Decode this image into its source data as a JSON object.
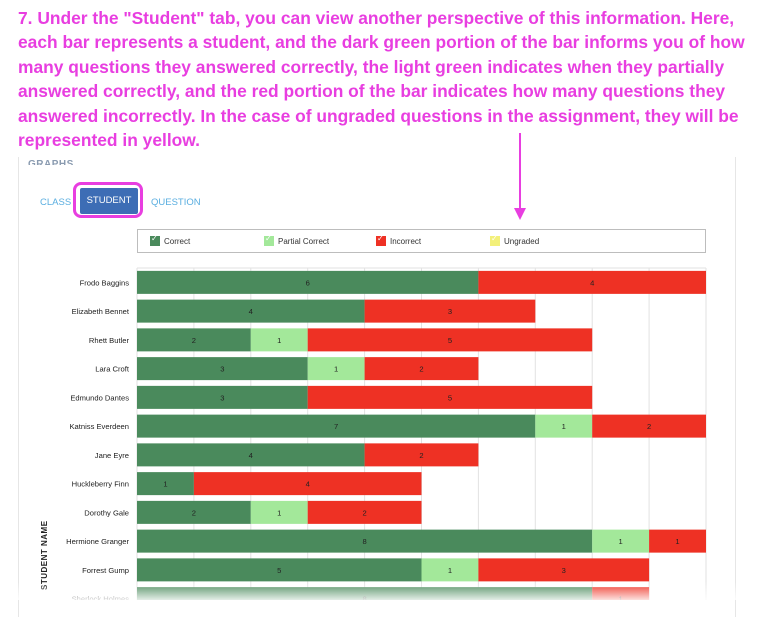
{
  "instruction": "7. Under the \"Student\" tab, you can view another perspective of this information. Here, each bar represents a student, and the dark green portion of the bar informs you of how many questions they answered correctly, the light green indicates when they partially answered correctly, and the red portion of the bar indicates how many questions they answered incorrectly. In the case of ungraded questions in the assignment, they will be represented in yellow.",
  "panel_title": "GRAPHS",
  "tabs": {
    "class": "CLASS",
    "student": "STUDENT",
    "question": "QUESTION"
  },
  "colors": {
    "correct": "#4a8a5c",
    "partial": "#a3e89a",
    "incorrect": "#ee3124",
    "ungraded": "#f3f07a",
    "highlight": "#e83ee0"
  },
  "chart_data": {
    "type": "bar",
    "orientation": "horizontal",
    "stacked": true,
    "title": "",
    "xlabel": "",
    "ylabel": "STUDENT NAME",
    "xlim": [
      0,
      10
    ],
    "grid": true,
    "legend_position": "top",
    "categories": [
      "Frodo Baggins",
      "Elizabeth Bennet",
      "Rhett Butler",
      "Lara Croft",
      "Edmundo Dantes",
      "Katniss Everdeen",
      "Jane Eyre",
      "Huckleberry Finn",
      "Dorothy Gale",
      "Hermione Granger",
      "Forrest Gump",
      "Sherlock Holmes"
    ],
    "series": [
      {
        "name": "Correct",
        "values": [
          6,
          4,
          2,
          3,
          3,
          7,
          4,
          1,
          2,
          8,
          5,
          8
        ]
      },
      {
        "name": "Partial Correct",
        "values": [
          0,
          0,
          1,
          1,
          0,
          1,
          0,
          0,
          1,
          1,
          1,
          0
        ]
      },
      {
        "name": "Incorrect",
        "values": [
          4,
          3,
          5,
          2,
          5,
          2,
          2,
          4,
          2,
          1,
          3,
          1
        ]
      },
      {
        "name": "Ungraded",
        "values": [
          0,
          0,
          0,
          0,
          0,
          0,
          0,
          0,
          0,
          0,
          0,
          0
        ]
      }
    ]
  }
}
